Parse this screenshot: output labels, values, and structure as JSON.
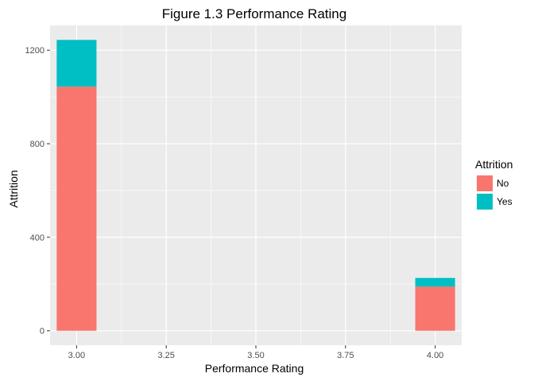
{
  "chart_data": {
    "type": "bar",
    "title": "Figure 1.3 Performance Rating",
    "xlabel": "Performance Rating",
    "ylabel": "Attrition",
    "x": [
      3.0,
      4.0
    ],
    "series": [
      {
        "name": "No",
        "values": [
          1044,
          189
        ],
        "color": "#F8766D"
      },
      {
        "name": "Yes",
        "values": [
          200,
          37
        ],
        "color": "#00BFC4"
      }
    ],
    "stacked": true,
    "bin_width": 0.111,
    "xlim": [
      2.926,
      4.074
    ],
    "ylim": [
      -62,
      1306
    ],
    "x_ticks": [
      3.0,
      3.25,
      3.5,
      3.75,
      4.0
    ],
    "x_tick_labels": [
      "3.00",
      "3.25",
      "3.50",
      "3.75",
      "4.00"
    ],
    "y_ticks": [
      0,
      400,
      800,
      1200
    ],
    "y_tick_labels": [
      "0",
      "400",
      "800",
      "1200"
    ],
    "grid": true,
    "panel_background": "#EBEBEB",
    "grid_color": "#FFFFFF",
    "legend": {
      "title": "Attrition",
      "position": "right"
    }
  }
}
